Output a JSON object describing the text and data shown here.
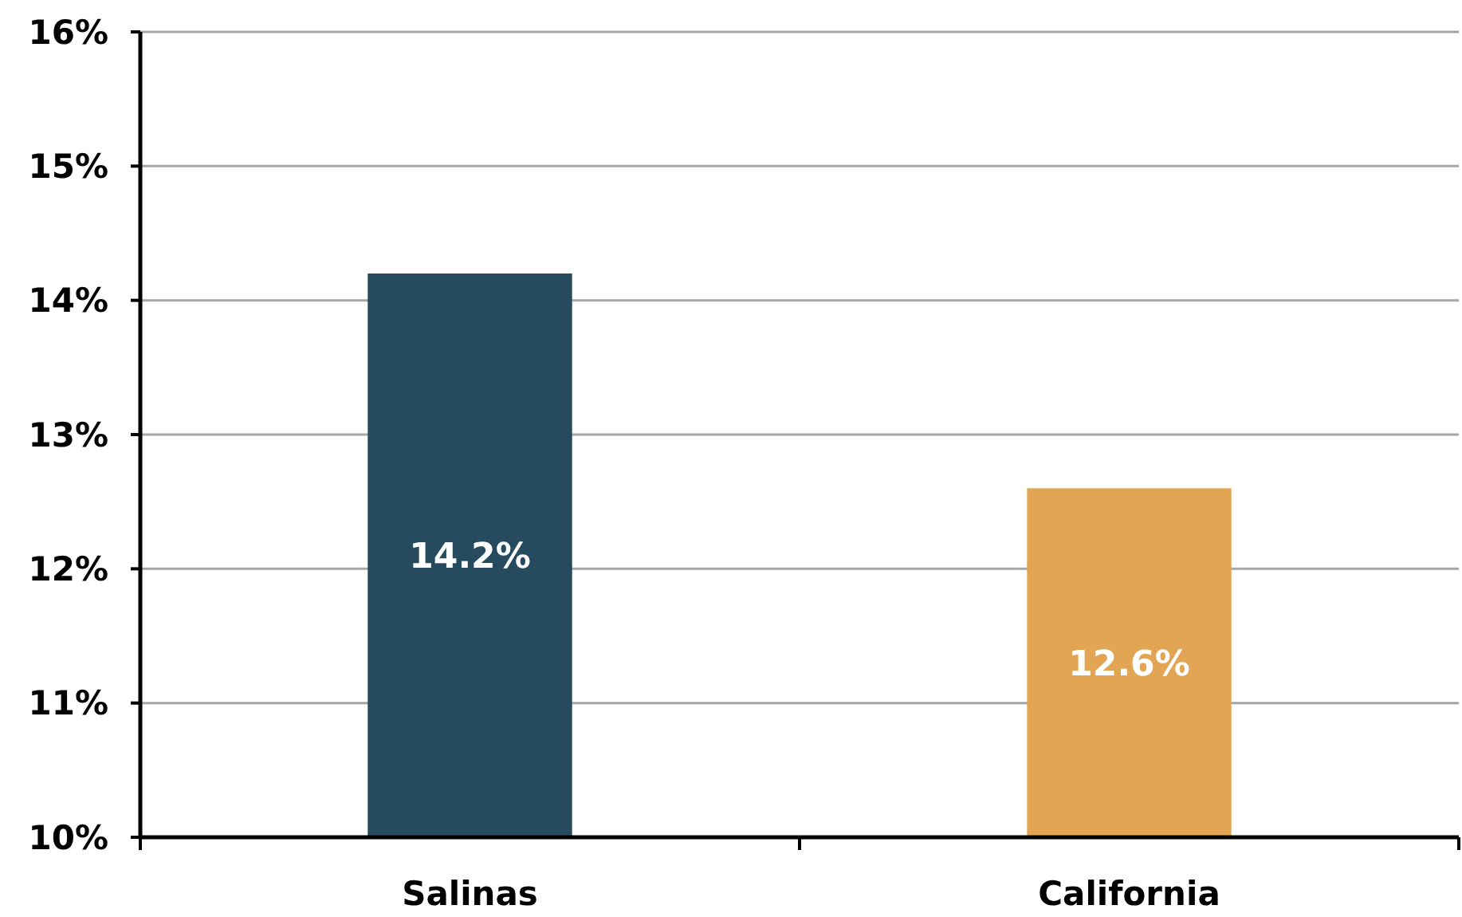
{
  "chart_data": {
    "type": "bar",
    "categories": [
      "Salinas",
      "California"
    ],
    "values": [
      14.2,
      12.6
    ],
    "colors": [
      "#264a5e",
      "#e2a554"
    ],
    "value_labels": [
      "14.2%",
      "12.6%"
    ],
    "ylim": [
      10,
      16
    ],
    "yticks": [
      {
        "value": 10,
        "label": "10%"
      },
      {
        "value": 11,
        "label": "11%"
      },
      {
        "value": 12,
        "label": "12%"
      },
      {
        "value": 13,
        "label": "13%"
      },
      {
        "value": 14,
        "label": "14%"
      },
      {
        "value": 15,
        "label": "15%"
      },
      {
        "value": 16,
        "label": "16%"
      }
    ],
    "grid": "y"
  }
}
